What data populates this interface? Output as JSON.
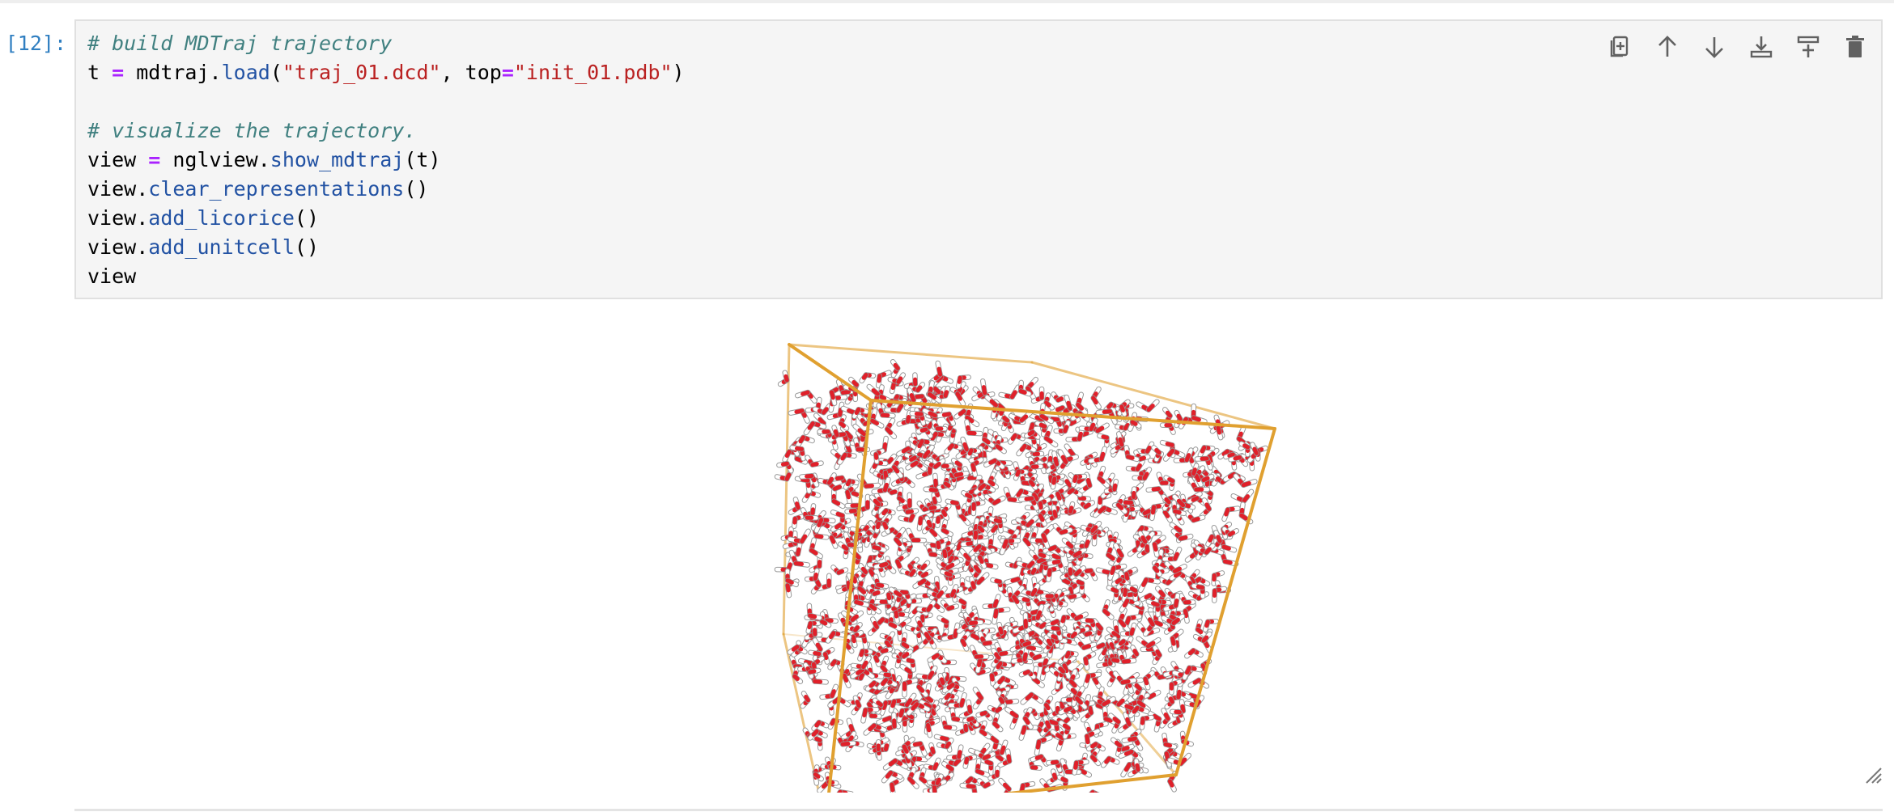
{
  "cell": {
    "prompt": "[12]:",
    "code_lines": [
      [
        {
          "t": "# build MDTraj trajectory",
          "c": "cm"
        }
      ],
      [
        {
          "t": "t "
        },
        {
          "t": "=",
          "c": "op"
        },
        {
          "t": " mdtraj."
        },
        {
          "t": "load",
          "c": "fn"
        },
        {
          "t": "("
        },
        {
          "t": "\"traj_01.dcd\"",
          "c": "st"
        },
        {
          "t": ", top"
        },
        {
          "t": "=",
          "c": "op"
        },
        {
          "t": "\"init_01.pdb\"",
          "c": "st"
        },
        {
          "t": ")"
        }
      ],
      [],
      [
        {
          "t": "# visualize the trajectory.",
          "c": "cm"
        }
      ],
      [
        {
          "t": "view "
        },
        {
          "t": "=",
          "c": "op"
        },
        {
          "t": " nglview."
        },
        {
          "t": "show_mdtraj",
          "c": "fn"
        },
        {
          "t": "(t)"
        }
      ],
      [
        {
          "t": "view."
        },
        {
          "t": "clear_representations",
          "c": "fn"
        },
        {
          "t": "()"
        }
      ],
      [
        {
          "t": "view."
        },
        {
          "t": "add_licorice",
          "c": "fn"
        },
        {
          "t": "()"
        }
      ],
      [
        {
          "t": "view."
        },
        {
          "t": "add_unitcell",
          "c": "fn"
        },
        {
          "t": "()"
        }
      ],
      [
        {
          "t": "view"
        }
      ]
    ]
  },
  "toolbar": [
    {
      "name": "duplicate-cell-button",
      "icon": "duplicate-icon"
    },
    {
      "name": "move-cell-up-button",
      "icon": "arrow-up-icon"
    },
    {
      "name": "move-cell-down-button",
      "icon": "arrow-down-icon"
    },
    {
      "name": "insert-cell-above-button",
      "icon": "insert-above-icon"
    },
    {
      "name": "insert-cell-below-button",
      "icon": "insert-below-icon"
    },
    {
      "name": "delete-cell-button",
      "icon": "trash-icon"
    }
  ],
  "colors": {
    "unitcell": "#e0a030",
    "oxygen": "#e0202a",
    "hydrogen": "#ffffff",
    "hydrogen_edge": "#999999",
    "prompt": "#307fc1"
  },
  "molecule_count": 1100
}
